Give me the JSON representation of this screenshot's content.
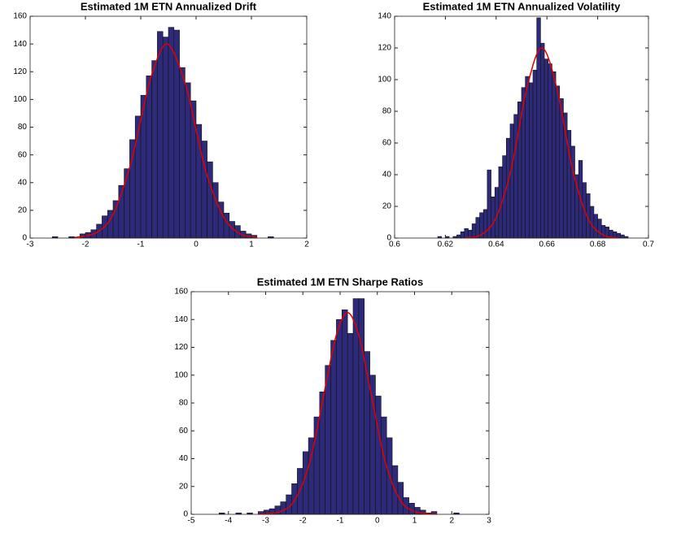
{
  "chart_data": [
    {
      "type": "histogram",
      "title": "Estimated 1M ETN Annualized Drift",
      "color": "#2e2a7a",
      "bins": [
        -2.6,
        -2.5,
        -2.4,
        -2.3,
        -2.2,
        -2.1,
        -2,
        -1.9,
        -1.8,
        -1.7,
        -1.6,
        -1.5,
        -1.4,
        -1.3,
        -1.2,
        -1.1,
        -1,
        -0.9,
        -0.8,
        -0.7,
        -0.6,
        -0.5,
        -0.4,
        -0.3,
        -0.2,
        -0.1,
        0,
        0.1,
        0.2,
        0.3,
        0.4,
        0.5,
        0.6,
        0.7,
        0.8,
        0.9,
        1,
        1.1,
        1.2,
        1.3,
        1.4
      ],
      "values": [
        1,
        0,
        0,
        1,
        0,
        3,
        4,
        6,
        10,
        16,
        20,
        27,
        38,
        50,
        71,
        88,
        103,
        117,
        128,
        149,
        145,
        152,
        150,
        123,
        112,
        99,
        82,
        70,
        55,
        40,
        26,
        18,
        12,
        9,
        5,
        3,
        2,
        0,
        0,
        1
      ],
      "fit": {
        "color": "#e00000",
        "x": [
          -2.2,
          -1.8,
          -1.5,
          -1.2,
          -1,
          -0.8,
          -0.52,
          -0.2,
          0,
          0.2,
          0.5,
          0.8,
          1.1
        ],
        "values": [
          0.3,
          4,
          17,
          51,
          85,
          118,
          140,
          112,
          78,
          45,
          15,
          3,
          0.5
        ]
      },
      "xlim": [
        -3,
        2
      ],
      "xticks": [
        -3,
        -2,
        -1,
        0,
        1,
        2
      ],
      "ylim": [
        0,
        160
      ],
      "yticks": [
        0,
        20,
        40,
        60,
        80,
        100,
        120,
        140,
        160
      ]
    },
    {
      "type": "histogram",
      "title": "Estimated 1M ETN Annualized Volatility",
      "color": "#2e2a7a",
      "bins": [
        0.617,
        0.6185,
        0.62,
        0.6215,
        0.623,
        0.6245,
        0.626,
        0.6275,
        0.629,
        0.6305,
        0.632,
        0.6335,
        0.635,
        0.6365,
        0.638,
        0.6395,
        0.641,
        0.6425,
        0.644,
        0.6455,
        0.647,
        0.6485,
        0.65,
        0.6515,
        0.653,
        0.6545,
        0.656,
        0.6575,
        0.659,
        0.6605,
        0.662,
        0.6635,
        0.665,
        0.6665,
        0.668,
        0.6695,
        0.671,
        0.6725,
        0.674,
        0.6755,
        0.677,
        0.6785,
        0.68,
        0.6815,
        0.683,
        0.6845,
        0.686,
        0.6875,
        0.689,
        0.6905,
        0.692
      ],
      "values": [
        1,
        0,
        1,
        0,
        1,
        2,
        4,
        6,
        5,
        9,
        13,
        16,
        18,
        43,
        26,
        32,
        45,
        52,
        63,
        72,
        78,
        86,
        95,
        102,
        98,
        106,
        139,
        123,
        113,
        110,
        105,
        96,
        88,
        79,
        68,
        58,
        40,
        49,
        35,
        28,
        20,
        15,
        12,
        8,
        7,
        5,
        4,
        3,
        2,
        1
      ],
      "fit": {
        "color": "#e00000",
        "x": [
          0.628,
          0.634,
          0.64,
          0.646,
          0.652,
          0.658,
          0.664,
          0.67,
          0.676,
          0.682,
          0.688
        ],
        "values": [
          0.2,
          2,
          13,
          44,
          94,
          120,
          94,
          44,
          13,
          2,
          0.2
        ]
      },
      "xlim": [
        0.6,
        0.7
      ],
      "xticks": [
        0.6,
        0.62,
        0.64,
        0.66,
        0.68,
        0.7
      ],
      "ylim": [
        0,
        140
      ],
      "yticks": [
        0,
        20,
        40,
        60,
        80,
        100,
        120,
        140
      ]
    },
    {
      "type": "histogram",
      "title": "Estimated 1M ETN Sharpe Ratios",
      "color": "#2e2a7a",
      "bins": [
        -4.25,
        -4.1,
        -3.95,
        -3.8,
        -3.65,
        -3.5,
        -3.35,
        -3.2,
        -3.05,
        -2.9,
        -2.75,
        -2.6,
        -2.45,
        -2.3,
        -2.15,
        -2,
        -1.85,
        -1.7,
        -1.55,
        -1.4,
        -1.25,
        -1.1,
        -0.95,
        -0.8,
        -0.65,
        -0.5,
        -0.35,
        -0.2,
        -0.05,
        0.1,
        0.25,
        0.4,
        0.55,
        0.7,
        0.85,
        1,
        1.15,
        1.3,
        1.45,
        1.6,
        1.75,
        1.9,
        2.05,
        2.2
      ],
      "values": [
        1,
        0,
        0,
        1,
        0,
        1,
        0,
        2,
        3,
        4,
        6,
        9,
        14,
        22,
        33,
        45,
        55,
        70,
        88,
        107,
        125,
        140,
        147,
        130,
        155,
        155,
        117,
        100,
        85,
        70,
        55,
        35,
        23,
        12,
        8,
        5,
        3,
        1,
        2,
        0,
        0,
        0,
        1
      ],
      "fit": {
        "color": "#e00000",
        "x": [
          -3.2,
          -2.6,
          -2.2,
          -1.8,
          -1.4,
          -1.1,
          -0.8,
          -0.5,
          -0.2,
          0.2,
          0.6,
          1,
          1.6
        ],
        "values": [
          0.1,
          2,
          11,
          39,
          91,
          129,
          145,
          129,
          91,
          39,
          11,
          2,
          0.1
        ]
      },
      "xlim": [
        -5,
        3
      ],
      "xticks": [
        -5,
        -4,
        -3,
        -2,
        -1,
        0,
        1,
        2,
        3
      ],
      "ylim": [
        0,
        160
      ],
      "yticks": [
        0,
        20,
        40,
        60,
        80,
        100,
        120,
        140,
        160
      ]
    }
  ]
}
